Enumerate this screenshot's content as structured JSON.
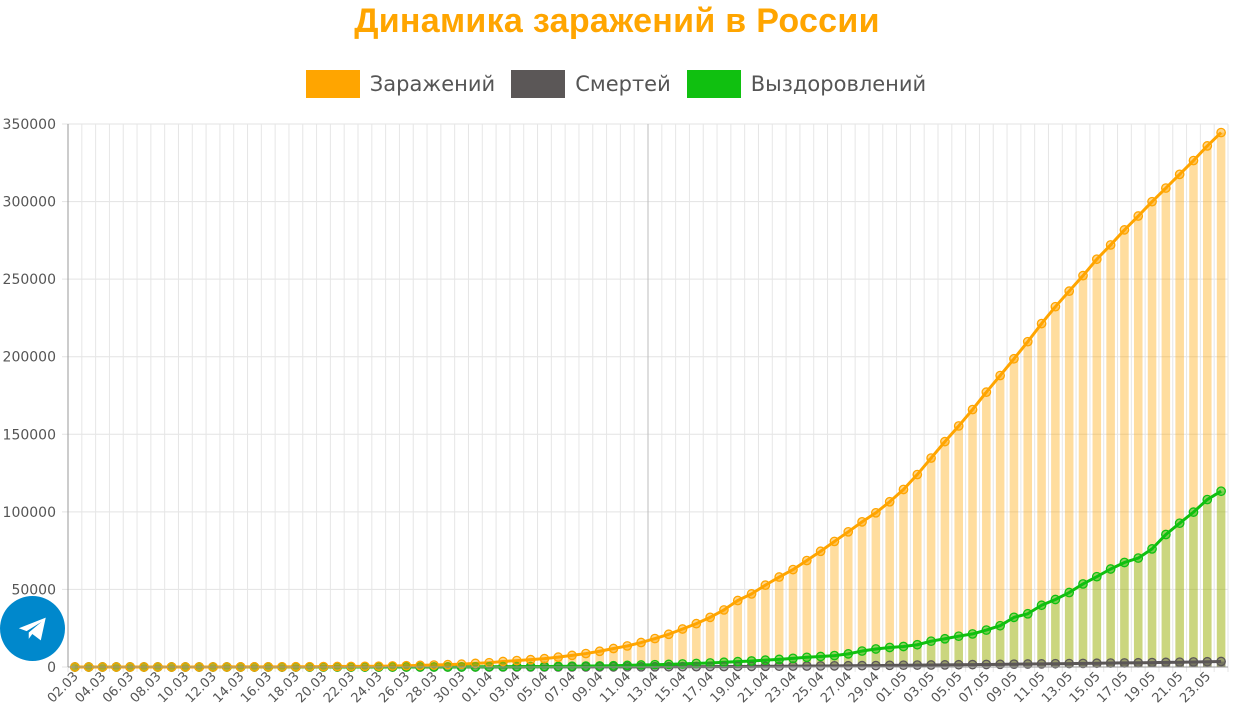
{
  "chart_data": {
    "type": "bar",
    "title": "Динамика заражений в России",
    "legend_position": "top",
    "grid": true,
    "ylim": [
      0,
      350000
    ],
    "yticks": [
      0,
      50000,
      100000,
      150000,
      200000,
      250000,
      300000,
      350000
    ],
    "x": [
      "02.03",
      "03.03",
      "04.03",
      "05.03",
      "06.03",
      "07.03",
      "08.03",
      "09.03",
      "10.03",
      "11.03",
      "12.03",
      "13.03",
      "14.03",
      "15.03",
      "16.03",
      "17.03",
      "18.03",
      "19.03",
      "20.03",
      "21.03",
      "22.03",
      "23.03",
      "24.03",
      "25.03",
      "26.03",
      "27.03",
      "28.03",
      "29.03",
      "30.03",
      "31.03",
      "01.04",
      "02.04",
      "03.04",
      "04.04",
      "05.04",
      "06.04",
      "07.04",
      "08.04",
      "09.04",
      "10.04",
      "11.04",
      "12.04",
      "13.04",
      "14.04",
      "15.04",
      "16.04",
      "17.04",
      "18.04",
      "19.04",
      "20.04",
      "21.04",
      "22.04",
      "23.04",
      "24.04",
      "25.04",
      "26.04",
      "27.04",
      "28.04",
      "29.04",
      "30.04",
      "01.05",
      "02.05",
      "03.05",
      "04.05",
      "05.05",
      "06.05",
      "07.05",
      "08.05",
      "09.05",
      "10.05",
      "11.05",
      "12.05",
      "13.05",
      "14.05",
      "15.05",
      "16.05",
      "17.05",
      "18.05",
      "19.05",
      "20.05",
      "21.05",
      "22.05",
      "23.05",
      "24.05"
    ],
    "xtick_labels": [
      "02.03",
      "04.03",
      "06.03",
      "08.03",
      "10.03",
      "12.03",
      "14.03",
      "16.03",
      "18.03",
      "20.03",
      "22.03",
      "24.03",
      "26.03",
      "28.03",
      "30.03",
      "01.04",
      "03.04",
      "05.04",
      "07.04",
      "09.04",
      "11.04",
      "13.04",
      "15.04",
      "17.04",
      "19.04",
      "21.04",
      "23.04",
      "25.04",
      "27.04",
      "29.04",
      "01.05",
      "03.05",
      "05.05",
      "07.05",
      "09.05",
      "11.05",
      "13.05",
      "15.05",
      "17.05",
      "19.05",
      "21.05",
      "23.05"
    ],
    "series": [
      {
        "name": "Заражений",
        "color": "#FFA500",
        "values": [
          3,
          3,
          3,
          4,
          4,
          10,
          14,
          17,
          20,
          28,
          34,
          45,
          59,
          63,
          90,
          114,
          147,
          199,
          253,
          306,
          367,
          438,
          495,
          658,
          840,
          1036,
          1264,
          1534,
          1836,
          2337,
          2777,
          3548,
          4149,
          4731,
          5389,
          6343,
          7497,
          8672,
          10131,
          11917,
          13584,
          15770,
          18328,
          21102,
          24490,
          27938,
          32008,
          36793,
          42853,
          47121,
          52763,
          57999,
          62773,
          68622,
          74588,
          80949,
          87147,
          93558,
          99399,
          106498,
          114431,
          124054,
          134686,
          145268,
          155370,
          165929,
          177160,
          187859,
          198676,
          209688,
          221344,
          232243,
          242271,
          252245,
          262843,
          272043,
          281752,
          290678,
          299941,
          308705,
          317554,
          326448,
          335882,
          344481
        ]
      },
      {
        "name": "Смертей",
        "color": "#5B5757",
        "values": [
          0,
          0,
          0,
          0,
          0,
          0,
          0,
          0,
          0,
          0,
          0,
          0,
          0,
          0,
          0,
          0,
          0,
          1,
          1,
          1,
          1,
          1,
          1,
          3,
          3,
          4,
          4,
          8,
          9,
          17,
          24,
          30,
          34,
          43,
          45,
          47,
          58,
          63,
          76,
          94,
          106,
          130,
          148,
          170,
          198,
          232,
          273,
          313,
          361,
          405,
          456,
          513,
          555,
          615,
          681,
          747,
          794,
          867,
          907,
          1073,
          1169,
          1222,
          1280,
          1356,
          1451,
          1537,
          1625,
          1723,
          1827,
          1915,
          2009,
          2116,
          2212,
          2305,
          2418,
          2537,
          2631,
          2722,
          2837,
          2972,
          3099,
          3249,
          3388,
          3541
        ]
      },
      {
        "name": "Выздоровлений",
        "color": "#10C010",
        "values": [
          0,
          0,
          0,
          0,
          0,
          0,
          0,
          0,
          0,
          0,
          0,
          3,
          3,
          5,
          5,
          5,
          5,
          6,
          9,
          12,
          16,
          17,
          22,
          29,
          38,
          45,
          49,
          64,
          66,
          121,
          190,
          235,
          281,
          333,
          355,
          406,
          494,
          580,
          698,
          795,
          1045,
          1291,
          1470,
          1694,
          1986,
          2304,
          2590,
          3057,
          3446,
          3873,
          4420,
          4891,
          5568,
          6250,
          6767,
          7346,
          8456,
          10286,
          11619,
          12586,
          13220,
          14349,
          16639,
          18203,
          19865,
          21327,
          23803,
          26608,
          32005,
          34306,
          39801,
          43512,
          48003,
          53530,
          58226,
          63166,
          67373,
          70209,
          76130,
          85392,
          92681,
          99825,
          107936,
          113299
        ]
      }
    ]
  },
  "telegram_button": {
    "icon": "paper-plane-icon",
    "color": "#0088cc"
  }
}
